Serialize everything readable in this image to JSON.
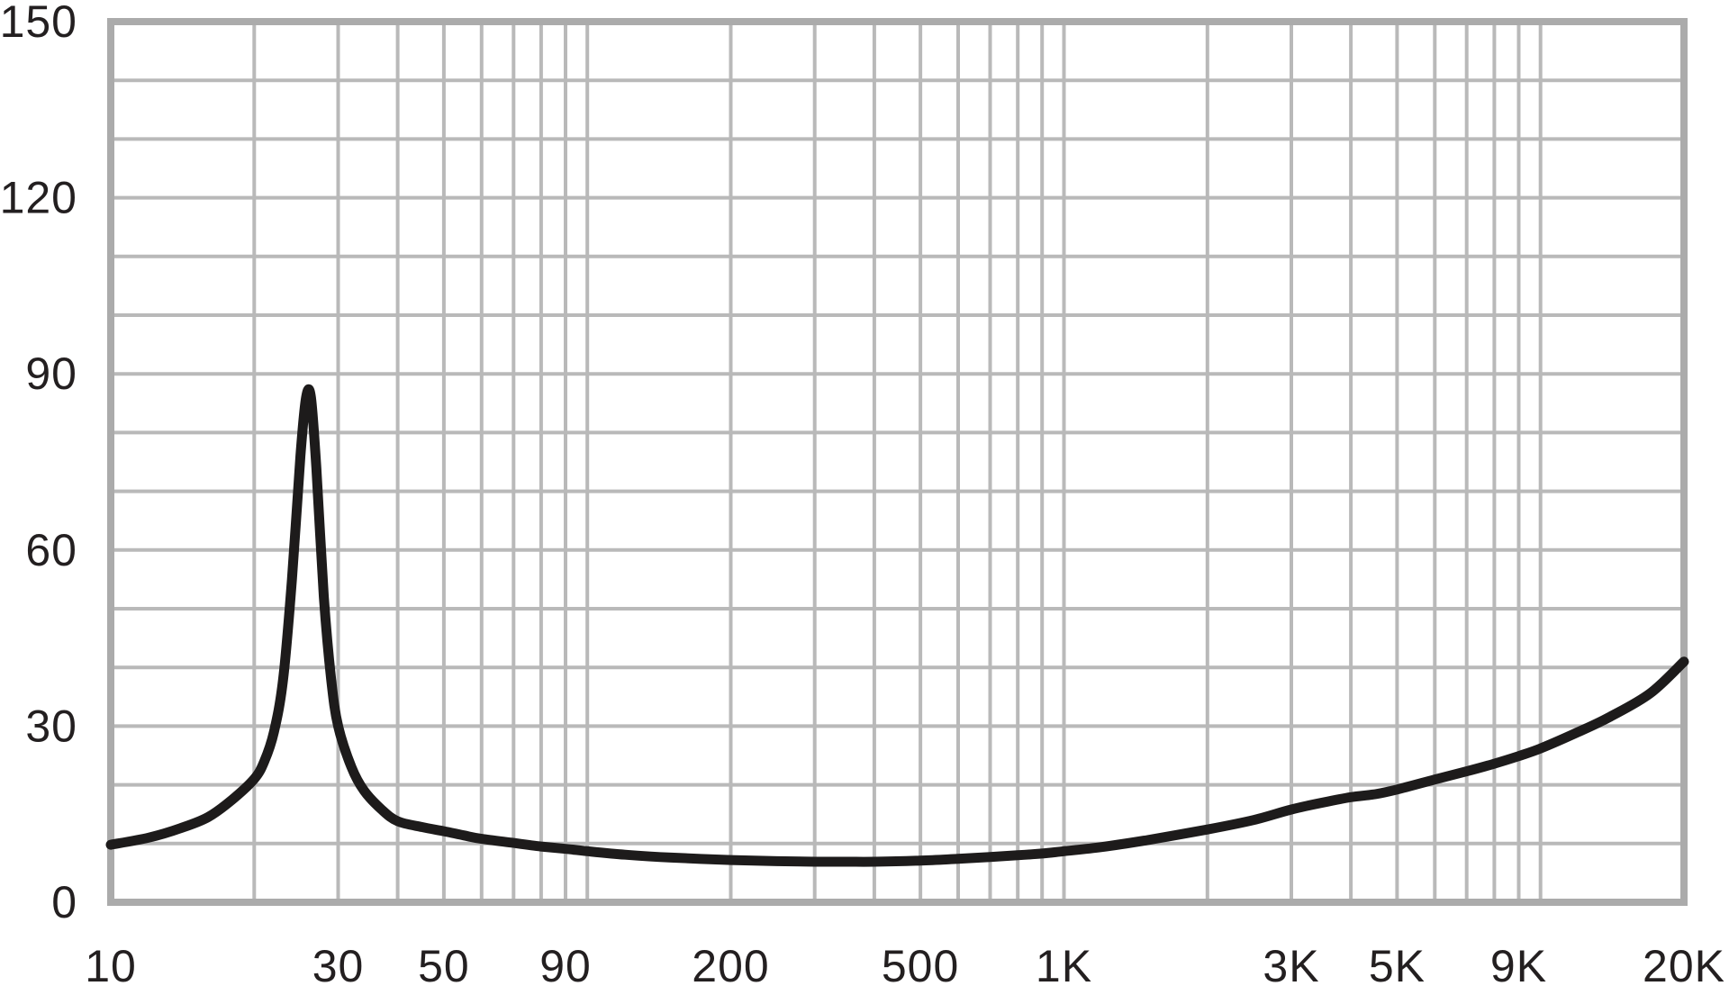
{
  "chart_data": {
    "type": "line",
    "title": "",
    "description": "Impedance magnitude versus frequency curve on a log-frequency grid",
    "x_axis": {
      "scale": "log",
      "min": 10,
      "max": 20000,
      "ticks": [
        {
          "value": 10,
          "label": "10"
        },
        {
          "value": 30,
          "label": "30"
        },
        {
          "value": 50,
          "label": "50"
        },
        {
          "value": 90,
          "label": "90"
        },
        {
          "value": 200,
          "label": "200"
        },
        {
          "value": 500,
          "label": "500"
        },
        {
          "value": 1000,
          "label": "1K"
        },
        {
          "value": 3000,
          "label": "3K"
        },
        {
          "value": 5000,
          "label": "5K"
        },
        {
          "value": 9000,
          "label": "9K"
        },
        {
          "value": 20000,
          "label": "20K"
        }
      ],
      "grid_multiples_per_decade": [
        1,
        2,
        3,
        4,
        5,
        6,
        7,
        8,
        9
      ]
    },
    "y_axis": {
      "scale": "linear",
      "min": 0,
      "max": 150,
      "grid_step": 10,
      "ticks": [
        {
          "value": 0,
          "label": "0"
        },
        {
          "value": 30,
          "label": "30"
        },
        {
          "value": 60,
          "label": "60"
        },
        {
          "value": 90,
          "label": "90"
        },
        {
          "value": 120,
          "label": "120"
        },
        {
          "value": 150,
          "label": "150"
        }
      ]
    },
    "grid": {
      "on": true,
      "legend": "none"
    },
    "series": [
      {
        "name": "impedance-curve",
        "color": "#1d1b1b",
        "stroke_width": 11,
        "points": [
          [
            10,
            9.8
          ],
          [
            12,
            11.0
          ],
          [
            14,
            12.6
          ],
          [
            16,
            14.5
          ],
          [
            18,
            17.5
          ],
          [
            20,
            21.0
          ],
          [
            21,
            24.0
          ],
          [
            22,
            29.0
          ],
          [
            23,
            38.0
          ],
          [
            24,
            55.0
          ],
          [
            25,
            76.0
          ],
          [
            25.7,
            86.0
          ],
          [
            26.3,
            86.0
          ],
          [
            27,
            74.0
          ],
          [
            28,
            52.0
          ],
          [
            29,
            38.0
          ],
          [
            30,
            30.0
          ],
          [
            32,
            23.0
          ],
          [
            34,
            19.0
          ],
          [
            37,
            15.8
          ],
          [
            40,
            13.8
          ],
          [
            45,
            12.8
          ],
          [
            50,
            12.1
          ],
          [
            55,
            11.4
          ],
          [
            60,
            10.8
          ],
          [
            70,
            10.1
          ],
          [
            80,
            9.5
          ],
          [
            90,
            9.1
          ],
          [
            100,
            8.7
          ],
          [
            120,
            8.1
          ],
          [
            150,
            7.6
          ],
          [
            200,
            7.2
          ],
          [
            250,
            7.0
          ],
          [
            300,
            6.9
          ],
          [
            350,
            6.9
          ],
          [
            400,
            6.9
          ],
          [
            500,
            7.1
          ],
          [
            600,
            7.4
          ],
          [
            700,
            7.7
          ],
          [
            800,
            8.0
          ],
          [
            900,
            8.3
          ],
          [
            1000,
            8.7
          ],
          [
            1200,
            9.4
          ],
          [
            1500,
            10.6
          ],
          [
            2000,
            12.4
          ],
          [
            2500,
            14.0
          ],
          [
            3000,
            15.8
          ],
          [
            3500,
            17.0
          ],
          [
            4000,
            17.9
          ],
          [
            4500,
            18.4
          ],
          [
            5000,
            19.2
          ],
          [
            6000,
            20.9
          ],
          [
            7000,
            22.3
          ],
          [
            8000,
            23.6
          ],
          [
            9000,
            24.9
          ],
          [
            10000,
            26.2
          ],
          [
            12000,
            29.0
          ],
          [
            14000,
            31.6
          ],
          [
            17000,
            35.6
          ],
          [
            20000,
            41.0
          ]
        ]
      }
    ]
  },
  "style": {
    "background_color": "#ffffff",
    "grid_color": "#b9b9b9",
    "frame_color": "#ababab",
    "label_color": "#231f20"
  }
}
